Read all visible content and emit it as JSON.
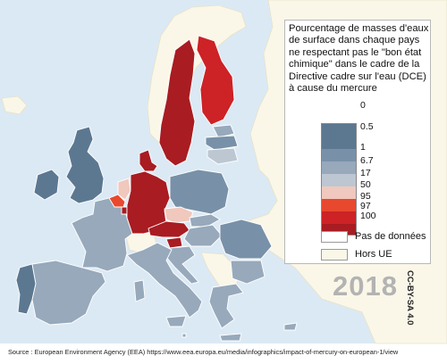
{
  "colors": {
    "sea": "#dbe9f4",
    "non_eu": "#faf7e8",
    "border": "#ffffff",
    "scale": [
      "#5c7891",
      "#7891a8",
      "#97a9bb",
      "#bcc7d2",
      "#f0c8bd",
      "#e8482e",
      "#cd2226",
      "#a81c22"
    ]
  },
  "legend": {
    "title": "Pourcentage de masses d'eaux de surface dans chaque pays ne respectant pas le \"bon état chimique\" dans le cadre de la Directive cadre sur l'eau (DCE) à cause du mercure",
    "ticks": [
      "0",
      "0.5",
      "1",
      "6.7",
      "17",
      "50",
      "95",
      "97",
      "100"
    ],
    "no_data": "Pas de données",
    "non_eu": "Hors UE"
  },
  "year": "2018",
  "license": "CC-BY-SA 4.0",
  "source": "Source : European Environment Agency (EEA) https://www.eea.europa.eu/media/infographics/impact-of-mercury-on-european-1/view",
  "countries": [
    {
      "id": "ireland",
      "value": 0
    },
    {
      "id": "united-kingdom",
      "value": 0
    },
    {
      "id": "france",
      "value": 1
    },
    {
      "id": "spain",
      "value": 1
    },
    {
      "id": "portugal",
      "value": 0
    },
    {
      "id": "belgium",
      "value": 50
    },
    {
      "id": "netherlands",
      "value": 17
    },
    {
      "id": "luxembourg",
      "value": 100
    },
    {
      "id": "germany",
      "value": 100
    },
    {
      "id": "denmark",
      "value": 100
    },
    {
      "id": "sweden",
      "value": 100
    },
    {
      "id": "finland",
      "value": 95
    },
    {
      "id": "estonia",
      "value": 1
    },
    {
      "id": "latvia",
      "value": 0.5
    },
    {
      "id": "lithuania",
      "value": 6.7
    },
    {
      "id": "poland",
      "value": 0.5
    },
    {
      "id": "czechia",
      "value": 17
    },
    {
      "id": "slovakia",
      "value": 1
    },
    {
      "id": "austria",
      "value": 100
    },
    {
      "id": "hungary",
      "value": 1
    },
    {
      "id": "slovenia",
      "value": 100
    },
    {
      "id": "croatia",
      "value": 1
    },
    {
      "id": "italy",
      "value": 1
    },
    {
      "id": "romania",
      "value": 0.5
    },
    {
      "id": "bulgaria",
      "value": 1
    },
    {
      "id": "greece",
      "value": 1
    },
    {
      "id": "cyprus",
      "value": 1
    },
    {
      "id": "malta",
      "value": 1
    }
  ]
}
